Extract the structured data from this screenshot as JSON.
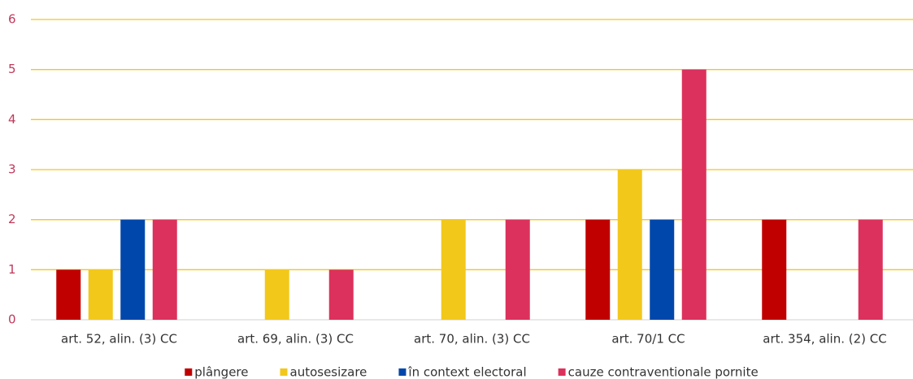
{
  "chart_data": {
    "type": "bar",
    "categories": [
      "art. 52, alin. (3) CC",
      "art. 69, alin. (3) CC",
      "art. 70, alin. (3) CC",
      "art. 70/1 CC",
      "art. 354, alin. (2) CC"
    ],
    "series": [
      {
        "name": "plângere",
        "color": "#c00000",
        "values": [
          1,
          0,
          0,
          2,
          2
        ]
      },
      {
        "name": "autosesizare",
        "color": "#f2c81b",
        "values": [
          1,
          1,
          2,
          3,
          0
        ]
      },
      {
        "name": "în context electoral",
        "color": "#0047ab",
        "values": [
          2,
          0,
          0,
          2,
          0
        ]
      },
      {
        "name": "cauze contraventionale pornite",
        "color": "#dc315c",
        "values": [
          2,
          1,
          2,
          5,
          2
        ]
      }
    ],
    "ylim": [
      0,
      6
    ],
    "yticks": [
      0,
      1,
      2,
      3,
      4,
      5,
      6
    ],
    "grid": true,
    "grid_color": "#f2c81b",
    "legend": "bottom"
  }
}
